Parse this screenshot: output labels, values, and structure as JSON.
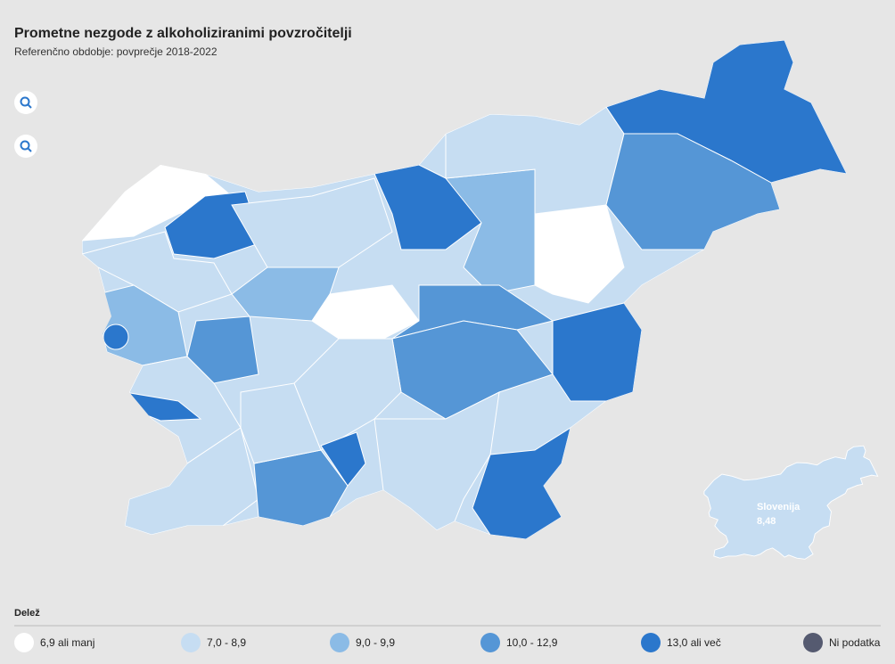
{
  "header": {
    "title": "Prometne nezgode z alkoholiziranimi povzročitelji",
    "subtitle": "Referenčno obdobje: povprečje 2018-2022"
  },
  "legend": {
    "title": "Delež",
    "items": [
      {
        "label": "6,9 ali manj",
        "color": "#ffffff"
      },
      {
        "label": "7,0 - 8,9",
        "color": "#c6ddf2"
      },
      {
        "label": "9,0 - 9,9",
        "color": "#8bbbe6"
      },
      {
        "label": "10,0 - 12,9",
        "color": "#5596d6"
      },
      {
        "label": "13,0 ali več",
        "color": "#2b77cc"
      },
      {
        "label": "Ni podatka",
        "color": "#555a70"
      }
    ]
  },
  "national": {
    "name": "Slovenija",
    "value": "8,48"
  }
}
